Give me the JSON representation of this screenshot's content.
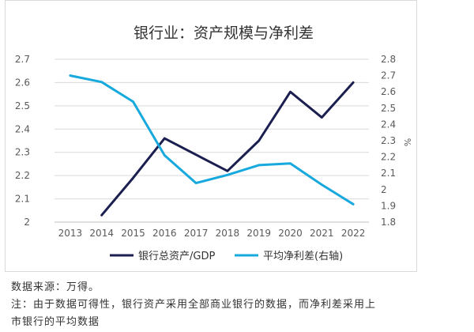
{
  "chart_data": {
    "type": "line",
    "title": "银行业：资产规模与净利差",
    "categories": [
      "2013",
      "2014",
      "2015",
      "2016",
      "2017",
      "2018",
      "2019",
      "2020",
      "2021",
      "2022"
    ],
    "left_axis": {
      "min": 2,
      "max": 2.7,
      "ticks": [
        "2.7",
        "2.6",
        "2.5",
        "2.4",
        "2.3",
        "2.2",
        "2.1",
        "2"
      ]
    },
    "right_axis": {
      "min": 1.8,
      "max": 2.8,
      "label": "%",
      "ticks": [
        "2.8",
        "2.7",
        "2.6",
        "2.5",
        "2.4",
        "2.3",
        "2.2",
        "2.1",
        "2",
        "1.9",
        "1.8"
      ]
    },
    "series": [
      {
        "name": "银行总资产/GDP",
        "axis": "left",
        "color": "#1a1f4f",
        "values": [
          null,
          2.03,
          2.19,
          2.36,
          2.29,
          2.22,
          2.35,
          2.56,
          2.45,
          2.6
        ]
      },
      {
        "name": "平均净利差(右轴)",
        "axis": "right",
        "color": "#17a9dd",
        "values": [
          2.7,
          2.66,
          2.54,
          2.21,
          2.04,
          2.09,
          2.15,
          2.16,
          2.03,
          1.91
        ]
      }
    ],
    "grid": true,
    "legend": "bottom"
  },
  "notes": {
    "source": "数据来源：万得。",
    "line1": "注：由于数据可得性，银行资产采用全部商业银行的数据，而净利差采用上",
    "line2": "市银行的平均数据"
  }
}
